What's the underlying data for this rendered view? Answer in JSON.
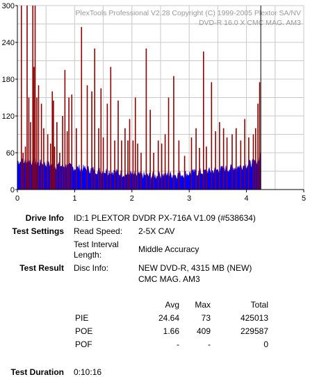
{
  "chart_data": {
    "type": "bar",
    "watermark": [
      "PlexTools Professional V2.28 Copyright (C) 1999-2005 Plextor SA/NV",
      "DVD-R   16.0 X   CMC MAG. AM3"
    ],
    "xlim": [
      0,
      5
    ],
    "ylim": [
      0,
      300
    ],
    "x_ticks": [
      "0",
      "1",
      "2",
      "3",
      "4",
      "5"
    ],
    "y_ticks": [
      "0",
      "60",
      "120",
      "180",
      "240",
      "300"
    ],
    "grid": true,
    "series": [
      {
        "color": "#0000ff",
        "fill": "area",
        "points": [
          [
            0.0,
            46
          ],
          [
            0.1,
            45
          ],
          [
            0.2,
            47
          ],
          [
            0.3,
            44
          ],
          [
            0.4,
            42
          ],
          [
            0.5,
            41
          ],
          [
            0.6,
            40
          ],
          [
            0.7,
            39
          ],
          [
            0.8,
            38
          ],
          [
            0.9,
            37
          ],
          [
            1.0,
            35
          ],
          [
            1.1,
            34
          ],
          [
            1.2,
            33
          ],
          [
            1.3,
            32
          ],
          [
            1.4,
            31
          ],
          [
            1.5,
            30
          ],
          [
            1.6,
            29
          ],
          [
            1.7,
            28
          ],
          [
            1.8,
            26
          ],
          [
            1.9,
            25
          ],
          [
            2.0,
            24
          ],
          [
            2.1,
            23
          ],
          [
            2.2,
            22
          ],
          [
            2.3,
            22
          ],
          [
            2.4,
            22
          ],
          [
            2.5,
            23
          ],
          [
            2.6,
            23
          ],
          [
            2.7,
            24
          ],
          [
            2.8,
            24
          ],
          [
            2.9,
            25
          ],
          [
            3.0,
            26
          ],
          [
            3.1,
            27
          ],
          [
            3.2,
            28
          ],
          [
            3.3,
            29
          ],
          [
            3.4,
            30
          ],
          [
            3.5,
            32
          ],
          [
            3.6,
            33
          ],
          [
            3.7,
            34
          ],
          [
            3.8,
            36
          ],
          [
            3.9,
            38
          ],
          [
            4.0,
            40
          ],
          [
            4.1,
            43
          ],
          [
            4.2,
            47
          ],
          [
            4.23,
            52
          ],
          [
            4.25,
            65
          ]
        ]
      },
      {
        "color": "#8b0000",
        "type": "spikes",
        "points": [
          [
            0.07,
            300
          ],
          [
            0.1,
            60
          ],
          [
            0.14,
            70
          ],
          [
            0.17,
            300
          ],
          [
            0.2,
            150
          ],
          [
            0.23,
            110
          ],
          [
            0.27,
            300
          ],
          [
            0.29,
            200
          ],
          [
            0.31,
            300
          ],
          [
            0.34,
            150
          ],
          [
            0.37,
            170
          ],
          [
            0.42,
            140
          ],
          [
            0.46,
            100
          ],
          [
            0.53,
            90
          ],
          [
            0.58,
            75
          ],
          [
            0.61,
            160
          ],
          [
            0.63,
            145
          ],
          [
            0.65,
            70
          ],
          [
            0.69,
            110
          ],
          [
            0.74,
            60
          ],
          [
            0.79,
            120
          ],
          [
            0.83,
            195
          ],
          [
            0.87,
            95
          ],
          [
            0.9,
            150
          ],
          [
            0.95,
            155
          ],
          [
            1.03,
            100
          ],
          [
            1.12,
            265
          ],
          [
            1.22,
            170
          ],
          [
            1.3,
            160
          ],
          [
            1.35,
            230
          ],
          [
            1.42,
            100
          ],
          [
            1.46,
            165
          ],
          [
            1.5,
            85
          ],
          [
            1.57,
            140
          ],
          [
            1.63,
            200
          ],
          [
            1.7,
            80
          ],
          [
            1.76,
            145
          ],
          [
            1.82,
            80
          ],
          [
            1.88,
            100
          ],
          [
            1.93,
            80
          ],
          [
            1.96,
            115
          ],
          [
            2.02,
            80
          ],
          [
            2.06,
            150
          ],
          [
            2.1,
            75
          ],
          [
            2.16,
            60
          ],
          [
            2.25,
            230
          ],
          [
            2.32,
            130
          ],
          [
            2.38,
            60
          ],
          [
            2.46,
            80
          ],
          [
            2.52,
            75
          ],
          [
            2.58,
            90
          ],
          [
            2.64,
            150
          ],
          [
            2.73,
            185
          ],
          [
            2.82,
            80
          ],
          [
            2.92,
            55
          ],
          [
            3.04,
            85
          ],
          [
            3.12,
            100
          ],
          [
            3.18,
            68
          ],
          [
            3.25,
            225
          ],
          [
            3.3,
            70
          ],
          [
            3.39,
            175
          ],
          [
            3.46,
            95
          ],
          [
            3.53,
            110
          ],
          [
            3.6,
            100
          ],
          [
            3.66,
            85
          ],
          [
            3.75,
            90
          ],
          [
            3.82,
            100
          ],
          [
            3.9,
            80
          ],
          [
            3.97,
            115
          ],
          [
            4.04,
            85
          ],
          [
            4.12,
            90
          ],
          [
            4.16,
            100
          ],
          [
            4.2,
            140
          ],
          [
            4.23,
            175
          ]
        ]
      }
    ],
    "cursor_x": 4.25
  },
  "info": {
    "drive_info_label": "Drive Info",
    "drive_info_value": "ID:1 PLEXTOR DVDR PX-716A V1.09 (#538634)",
    "test_settings_label": "Test Settings",
    "read_speed_label": "Read Speed:",
    "read_speed_value": "2-5X CAV",
    "interval_label_1": "Test Interval",
    "interval_label_2": "Length:",
    "interval_value": "Middle Accuracy",
    "test_result_label": "Test Result",
    "disc_info_label": "Disc Info:",
    "disc_info_value_1": "NEW DVD-R, 4315 MB (NEW)",
    "disc_info_value_2": "CMC MAG. AM3",
    "test_duration_label": "Test Duration",
    "test_duration_value": "0:10:16"
  },
  "results": {
    "headers": [
      "Avg",
      "Max",
      "Total"
    ],
    "rows": [
      {
        "name": "PIE",
        "avg": "24.64",
        "max": "73",
        "total": "425013"
      },
      {
        "name": "POE",
        "avg": "1.66",
        "max": "409",
        "total": "229587"
      },
      {
        "name": "POF",
        "avg": "-",
        "max": "-",
        "total": "0"
      }
    ]
  }
}
